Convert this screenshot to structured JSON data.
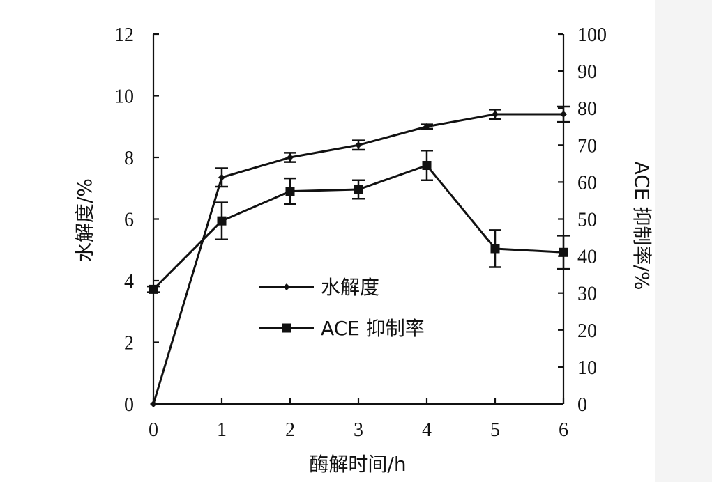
{
  "chart_data": {
    "type": "line",
    "x": [
      0,
      1,
      2,
      3,
      4,
      5,
      6
    ],
    "xlabel": "酶解时间/h",
    "ylabel_left": "水解度/%",
    "ylabel_right": "ACE 抑制率/%",
    "xlim": [
      0,
      6
    ],
    "ylim_left": [
      0,
      12
    ],
    "ylim_right": [
      0,
      100
    ],
    "x_ticks": [
      "0",
      "1",
      "2",
      "3",
      "4",
      "5",
      "6"
    ],
    "y_ticks_left": [
      "0",
      "2",
      "4",
      "6",
      "8",
      "10",
      "12"
    ],
    "y_ticks_right": [
      "0",
      "10",
      "20",
      "30",
      "40",
      "50",
      "60",
      "70",
      "80",
      "90",
      "100"
    ],
    "grid": false,
    "legend_position": "center",
    "series": [
      {
        "name": "水解度",
        "axis": "left",
        "marker": "diamond",
        "values": [
          0,
          7.35,
          8.0,
          8.4,
          9.0,
          9.4,
          9.4
        ],
        "errors": [
          0,
          0.3,
          0.15,
          0.15,
          0.07,
          0.15,
          0.25
        ]
      },
      {
        "name": "ACE 抑制率",
        "axis": "right",
        "marker": "square",
        "values": [
          31,
          49.5,
          57.5,
          58,
          64.5,
          42,
          41
        ],
        "errors": [
          0.8,
          5,
          3.5,
          2.5,
          4,
          5,
          4.5
        ]
      }
    ]
  }
}
